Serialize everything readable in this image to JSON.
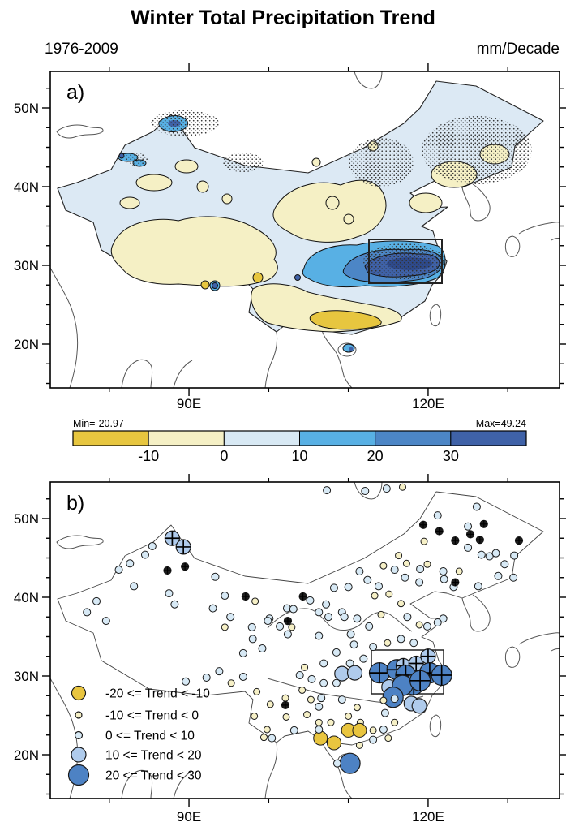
{
  "header": {
    "title": "Winter Total Precipitation Trend",
    "period": "1976-2009",
    "units": "mm/Decade"
  },
  "panel_a": {
    "label": "a)"
  },
  "panel_b": {
    "label": "b)"
  },
  "axes": {
    "lat_major_labels": [
      "50N",
      "40N",
      "30N",
      "20N"
    ],
    "lat_major_values": [
      50,
      40,
      30,
      20
    ],
    "lon_major_labels": [
      "90E",
      "120E"
    ],
    "lon_major_values": [
      90,
      120
    ],
    "lon_minor_values": [
      80,
      100,
      110,
      130
    ]
  },
  "colorbar": {
    "min_label": "Min=-20.97",
    "max_label": "Max=49.24",
    "tick_labels": [
      "-10",
      "0",
      "10",
      "20",
      "30"
    ],
    "colors": [
      "#E7C63F",
      "#F5F0C5",
      "#D8E9F4",
      "#58B0E4",
      "#4C86C6",
      "#3F62A8"
    ]
  },
  "station_classes": {
    "colors": [
      "#E9C53F",
      "#F6F0C6",
      "#D7E9F5",
      "#AFCBEC",
      "#4D82C4",
      "#1D1D1D"
    ],
    "radii": [
      8.5,
      4,
      4.5,
      9,
      12.5,
      4.5
    ]
  },
  "chart_data": [
    {
      "type": "heatmap",
      "panel": "a",
      "title": "Winter Total Precipitation Trend",
      "subtitle_left": "1976-2009",
      "units": "mm/Decade",
      "lon_range": [
        72.6,
        136.5
      ],
      "lat_range": [
        14.4,
        54.6
      ],
      "colorbar_levels": [
        -10,
        0,
        10,
        20,
        30
      ],
      "colorbar_min": -20.97,
      "colorbar_max": 49.24,
      "highlight_box": {
        "lon": [
          112,
          122
        ],
        "lat": [
          28,
          33.3
        ]
      },
      "legend_position": "below",
      "grid": false
    },
    {
      "type": "scatter",
      "panel": "b",
      "legend": [
        {
          "label": "-20 <= Trend < -10",
          "class": 0
        },
        {
          "label": "-10 <= Trend < 0",
          "class": 1
        },
        {
          "label": "0 <= Trend < 10",
          "class": 2
        },
        {
          "label": "10 <= Trend < 20",
          "class": 3
        },
        {
          "label": "20 <= Trend < 30",
          "class": 4
        }
      ],
      "highlight_box": {
        "lon": [
          112,
          122
        ],
        "lat": [
          28,
          33.3
        ]
      },
      "stations": [
        [
          87.9,
          47.5,
          3,
          1
        ],
        [
          89.3,
          46.4,
          3,
          1
        ],
        [
          87.3,
          43.4,
          5,
          1
        ],
        [
          89.5,
          43.9,
          5,
          1
        ],
        [
          85.4,
          46.5,
          2,
          0
        ],
        [
          84.5,
          45.4,
          2,
          0
        ],
        [
          82.6,
          44.3,
          2,
          0
        ],
        [
          81.2,
          43.5,
          2,
          0
        ],
        [
          83.1,
          41.4,
          2,
          0
        ],
        [
          78.4,
          39.5,
          2,
          0
        ],
        [
          77.2,
          38.1,
          2,
          0
        ],
        [
          79.6,
          37.0,
          2,
          0
        ],
        [
          87.5,
          40.5,
          2,
          0
        ],
        [
          88.2,
          39.1,
          2,
          0
        ],
        [
          93.3,
          42.6,
          2,
          0
        ],
        [
          94.5,
          40.2,
          2,
          0
        ],
        [
          95.2,
          37.5,
          2,
          0
        ],
        [
          97.1,
          40.1,
          5,
          1
        ],
        [
          98.3,
          39.5,
          1,
          0
        ],
        [
          100.1,
          37.3,
          2,
          0
        ],
        [
          102.3,
          38.6,
          2,
          0
        ],
        [
          102.9,
          36.2,
          1,
          0
        ],
        [
          93.0,
          38.6,
          2,
          0
        ],
        [
          97.9,
          36.2,
          2,
          0
        ],
        [
          94.5,
          36.2,
          1,
          0
        ],
        [
          99.9,
          37.0,
          2,
          0
        ],
        [
          101.4,
          36.3,
          2,
          0
        ],
        [
          104.3,
          40.1,
          5,
          1
        ],
        [
          105.2,
          39.6,
          2,
          0
        ],
        [
          103.1,
          38.5,
          2,
          0
        ],
        [
          102.4,
          37.0,
          5,
          1
        ],
        [
          106.3,
          38.1,
          2,
          0
        ],
        [
          107.2,
          39.1,
          2,
          0
        ],
        [
          107.5,
          37.5,
          2,
          0
        ],
        [
          109.2,
          38.1,
          2,
          0
        ],
        [
          109.5,
          37.5,
          2,
          0
        ],
        [
          110.3,
          35.3,
          2,
          0
        ],
        [
          110.7,
          34.0,
          2,
          0
        ],
        [
          106.3,
          35.1,
          2,
          0
        ],
        [
          98.0,
          34.7,
          2,
          0
        ],
        [
          99.2,
          33.5,
          2,
          0
        ],
        [
          96.8,
          32.9,
          2,
          0
        ],
        [
          102.4,
          35.3,
          2,
          0
        ],
        [
          96.8,
          29.9,
          2,
          0
        ],
        [
          93.8,
          30.6,
          2,
          0
        ],
        [
          95.3,
          29.1,
          1,
          0
        ],
        [
          92.2,
          29.8,
          2,
          0
        ],
        [
          89.6,
          29.3,
          2,
          0
        ],
        [
          119.4,
          49.2,
          5,
          1
        ],
        [
          121.4,
          48.4,
          5,
          1
        ],
        [
          123.4,
          47.2,
          5,
          1
        ],
        [
          125.3,
          48.0,
          5,
          1
        ],
        [
          127.0,
          49.3,
          5,
          1
        ],
        [
          126.5,
          47.3,
          5,
          1
        ],
        [
          131.4,
          47.2,
          5,
          1
        ],
        [
          125.0,
          49.0,
          2,
          0
        ],
        [
          121.2,
          50.4,
          2,
          0
        ],
        [
          126.1,
          51.5,
          2,
          0
        ],
        [
          119.5,
          47.1,
          1,
          0
        ],
        [
          125.0,
          46.3,
          2,
          0
        ],
        [
          126.7,
          45.4,
          2,
          0
        ],
        [
          127.7,
          45.2,
          2,
          0
        ],
        [
          128.5,
          45.6,
          2,
          0
        ],
        [
          129.6,
          44.2,
          2,
          0
        ],
        [
          130.8,
          45.3,
          2,
          0
        ],
        [
          130.7,
          42.5,
          2,
          0
        ],
        [
          128.8,
          42.7,
          2,
          0
        ],
        [
          123.2,
          41.3,
          2,
          0
        ],
        [
          123.4,
          41.9,
          5,
          1
        ],
        [
          123.9,
          43.3,
          1,
          0
        ],
        [
          126.3,
          41.4,
          2,
          0
        ],
        [
          121.9,
          43.3,
          2,
          0
        ],
        [
          122.0,
          42.3,
          2,
          0
        ],
        [
          107.3,
          53.6,
          2,
          0
        ],
        [
          112.1,
          53.5,
          2,
          0
        ],
        [
          114.8,
          53.8,
          2,
          0
        ],
        [
          116.8,
          54.0,
          1,
          0
        ],
        [
          111.4,
          43.3,
          2,
          0
        ],
        [
          112.4,
          42.2,
          2,
          0
        ],
        [
          113.8,
          41.4,
          2,
          0
        ],
        [
          108.2,
          41.2,
          2,
          0
        ],
        [
          110.0,
          41.3,
          2,
          0
        ],
        [
          114.4,
          44.0,
          1,
          0
        ],
        [
          115.8,
          43.5,
          2,
          0
        ],
        [
          116.3,
          45.3,
          1,
          0
        ],
        [
          117.3,
          44.3,
          1,
          0
        ],
        [
          119.0,
          43.6,
          2,
          0
        ],
        [
          119.9,
          44.2,
          1,
          0
        ],
        [
          117.1,
          42.5,
          2,
          0
        ],
        [
          118.9,
          41.9,
          2,
          0
        ],
        [
          113.3,
          40.2,
          1,
          0
        ],
        [
          115.1,
          40.4,
          1,
          0
        ],
        [
          116.6,
          39.2,
          1,
          0
        ],
        [
          117.4,
          37.5,
          2,
          0
        ],
        [
          118.9,
          36.5,
          1,
          0
        ],
        [
          121.9,
          37.3,
          2,
          0
        ],
        [
          121.2,
          36.8,
          2,
          0
        ],
        [
          114.1,
          37.8,
          1,
          0
        ],
        [
          112.6,
          36.3,
          2,
          0
        ],
        [
          111.1,
          37.3,
          2,
          0
        ],
        [
          119.9,
          36.3,
          2,
          0
        ],
        [
          113.1,
          33.7,
          2,
          0
        ],
        [
          114.9,
          34.2,
          1,
          0
        ],
        [
          116.6,
          34.7,
          2,
          0
        ],
        [
          118.2,
          34.2,
          2,
          0
        ],
        [
          111.9,
          32.2,
          2,
          0
        ],
        [
          110.2,
          31.6,
          2,
          0
        ],
        [
          108.5,
          33.0,
          2,
          0
        ],
        [
          113.9,
          30.4,
          4,
          1
        ],
        [
          116.1,
          30.8,
          4,
          1
        ],
        [
          116.9,
          31.3,
          3,
          1
        ],
        [
          118.5,
          31.6,
          3,
          1
        ],
        [
          120.0,
          32.5,
          3,
          1
        ],
        [
          117.2,
          30.1,
          4,
          1
        ],
        [
          118.2,
          28.9,
          4,
          1
        ],
        [
          120.2,
          30.4,
          4,
          1
        ],
        [
          121.7,
          30.1,
          4,
          1
        ],
        [
          115.1,
          28.6,
          3,
          0
        ],
        [
          116.8,
          28.8,
          4,
          0
        ],
        [
          119.0,
          29.4,
          4,
          1
        ],
        [
          109.2,
          30.3,
          3,
          0
        ],
        [
          110.8,
          30.4,
          3,
          0
        ],
        [
          115.6,
          27.3,
          4,
          0
        ],
        [
          117.9,
          26.5,
          3,
          0
        ],
        [
          118.9,
          26.2,
          3,
          0
        ],
        [
          103.9,
          30.1,
          2,
          0
        ],
        [
          105.4,
          29.6,
          2,
          0
        ],
        [
          106.9,
          29.1,
          2,
          0
        ],
        [
          104.5,
          31.1,
          1,
          0
        ],
        [
          106.9,
          31.6,
          2,
          0
        ],
        [
          108.5,
          29.1,
          2,
          0
        ],
        [
          114.4,
          26.9,
          1,
          0
        ],
        [
          115.8,
          27.1,
          2,
          0
        ],
        [
          114.6,
          25.3,
          2,
          0
        ],
        [
          115.8,
          24.1,
          1,
          0
        ],
        [
          114.4,
          23.2,
          2,
          0
        ],
        [
          115.0,
          22.1,
          1,
          0
        ],
        [
          113.1,
          21.9,
          2,
          0
        ],
        [
          111.4,
          21.2,
          1,
          0
        ],
        [
          113.1,
          23.1,
          1,
          0
        ],
        [
          111.5,
          24.1,
          1,
          0
        ],
        [
          110.0,
          23.1,
          0,
          0
        ],
        [
          111.4,
          23.1,
          0,
          0
        ],
        [
          106.5,
          22.1,
          0,
          0
        ],
        [
          108.2,
          21.5,
          0,
          0
        ],
        [
          110.2,
          18.9,
          4,
          0
        ],
        [
          108.6,
          18.9,
          2,
          0
        ],
        [
          107.8,
          24.1,
          1,
          0
        ],
        [
          109.2,
          27.0,
          2,
          0
        ],
        [
          98.5,
          28.0,
          1,
          0
        ],
        [
          102.1,
          27.2,
          1,
          0
        ],
        [
          104.2,
          28.2,
          1,
          0
        ],
        [
          100.2,
          26.4,
          1,
          0
        ],
        [
          102.1,
          26.3,
          5,
          1
        ],
        [
          105.3,
          27.0,
          1,
          0
        ],
        [
          106.6,
          27.2,
          2,
          0
        ],
        [
          106.3,
          26.1,
          2,
          0
        ],
        [
          110.0,
          24.9,
          1,
          0
        ],
        [
          111.1,
          26.0,
          1,
          0
        ],
        [
          98.2,
          24.9,
          1,
          0
        ],
        [
          102.2,
          24.8,
          1,
          0
        ],
        [
          104.8,
          25.1,
          1,
          0
        ],
        [
          99.8,
          23.2,
          1,
          0
        ],
        [
          103.2,
          23.1,
          2,
          0
        ],
        [
          99.4,
          22.2,
          1,
          0
        ],
        [
          100.4,
          22.1,
          2,
          0
        ],
        [
          106.3,
          23.2,
          2,
          0
        ],
        [
          106.3,
          24.1,
          1,
          0
        ]
      ]
    }
  ]
}
